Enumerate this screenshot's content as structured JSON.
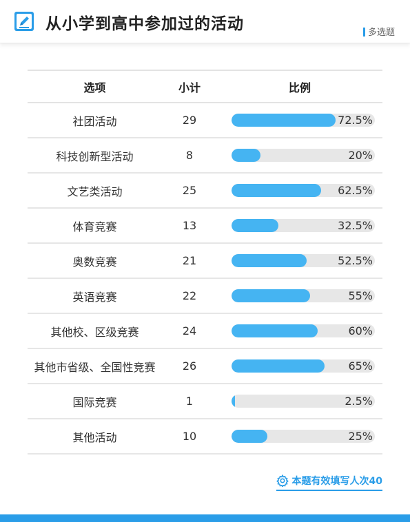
{
  "header": {
    "title": "从小学到高中参加过的活动",
    "tag": "多选题",
    "icon": "pencil-edit-icon"
  },
  "table": {
    "columns": [
      "选项",
      "小计",
      "比例"
    ],
    "rows": [
      {
        "option": "社团活动",
        "count": "29",
        "percent": "72.5%"
      },
      {
        "option": "科技创新型活动",
        "count": "8",
        "percent": "20%"
      },
      {
        "option": "文艺类活动",
        "count": "25",
        "percent": "62.5%"
      },
      {
        "option": "体育竞赛",
        "count": "13",
        "percent": "32.5%"
      },
      {
        "option": "奥数竞赛",
        "count": "21",
        "percent": "52.5%"
      },
      {
        "option": "英语竞赛",
        "count": "22",
        "percent": "55%"
      },
      {
        "option": "其他校、区级竞赛",
        "count": "24",
        "percent": "60%"
      },
      {
        "option": "其他市省级、全国性竞赛",
        "count": "26",
        "percent": "65%"
      },
      {
        "option": "国际竞赛",
        "count": "1",
        "percent": "2.5%"
      },
      {
        "option": "其他活动",
        "count": "10",
        "percent": "25%"
      }
    ]
  },
  "footer": {
    "text": "本题有效填写人次40",
    "icon": "gear-icon"
  },
  "colors": {
    "accent": "#2a9de8",
    "bar_fill": "#45b4f2",
    "bar_track": "#e7e7e7"
  }
}
